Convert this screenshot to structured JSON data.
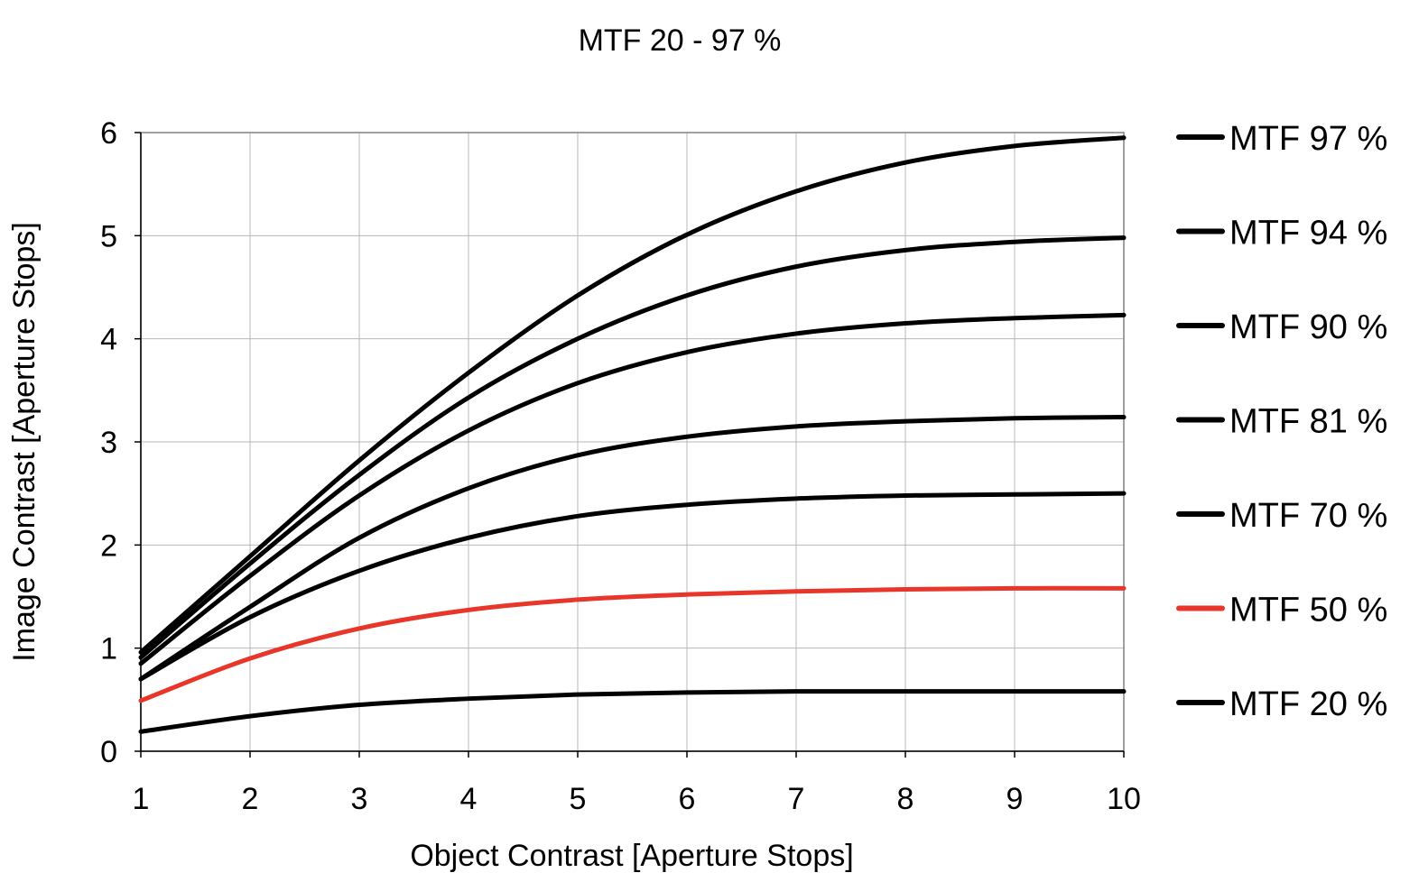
{
  "chart_data": {
    "type": "line",
    "title": "MTF 20 - 97 %",
    "xlabel": "Object Contrast [Aperture Stops]",
    "ylabel": "Image Contrast [Aperture Stops]",
    "xlim": [
      1,
      10
    ],
    "ylim": [
      0,
      6
    ],
    "x_ticks": [
      "1",
      "2",
      "3",
      "4",
      "5",
      "6",
      "7",
      "8",
      "9",
      "10"
    ],
    "y_ticks": [
      "0",
      "1",
      "2",
      "3",
      "4",
      "5",
      "6"
    ],
    "grid": true,
    "legend_position": "right",
    "x": [
      1,
      2,
      3,
      4,
      5,
      6,
      7,
      8,
      9,
      10
    ],
    "series": [
      {
        "name": "MTF 97 %",
        "color": "#000000",
        "values": [
          0.96,
          1.89,
          2.82,
          3.67,
          4.42,
          5.01,
          5.43,
          5.71,
          5.87,
          5.95
        ]
      },
      {
        "name": "MTF 94 %",
        "color": "#000000",
        "values": [
          0.91,
          1.82,
          2.68,
          3.43,
          4.0,
          4.42,
          4.7,
          4.86,
          4.94,
          4.98
        ]
      },
      {
        "name": "MTF 90 %",
        "color": "#000000",
        "values": [
          0.85,
          1.7,
          2.48,
          3.11,
          3.57,
          3.87,
          4.05,
          4.15,
          4.2,
          4.23
        ]
      },
      {
        "name": "MTF 81 %",
        "color": "#000000",
        "values": [
          0.7,
          1.4,
          2.07,
          2.55,
          2.87,
          3.05,
          3.15,
          3.2,
          3.23,
          3.24
        ]
      },
      {
        "name": "MTF 70 %",
        "color": "#000000",
        "values": [
          0.7,
          1.3,
          1.75,
          2.07,
          2.28,
          2.39,
          2.45,
          2.48,
          2.49,
          2.5
        ]
      },
      {
        "name": "MTF 50 %",
        "color": "#e8362b",
        "values": [
          0.49,
          0.9,
          1.19,
          1.37,
          1.47,
          1.52,
          1.55,
          1.57,
          1.58,
          1.58
        ]
      },
      {
        "name": "MTF 20 %",
        "color": "#000000",
        "values": [
          0.19,
          0.34,
          0.45,
          0.51,
          0.55,
          0.57,
          0.58,
          0.58,
          0.58,
          0.58
        ]
      }
    ]
  }
}
